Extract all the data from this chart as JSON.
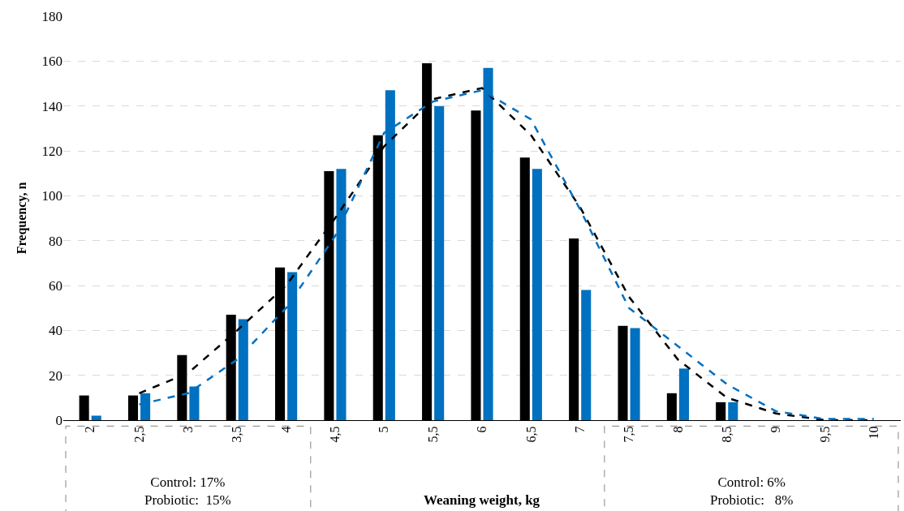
{
  "chart_data": {
    "type": "bar",
    "xlabel": "Weaning weight, kg",
    "ylabel": "Frequency, n",
    "categories": [
      "2",
      "2,5",
      "3",
      "3,5",
      "4",
      "4,5",
      "5",
      "5,5",
      "6",
      "6,5",
      "7",
      "7,5",
      "8",
      "8,5",
      "9",
      "9,5",
      "10"
    ],
    "series": [
      {
        "color": "#000000",
        "values": [
          11,
          11,
          29,
          47,
          68,
          111,
          127,
          159,
          138,
          117,
          81,
          42,
          12,
          8,
          null,
          null,
          null
        ]
      },
      {
        "color": "#0070c0",
        "values": [
          2,
          12,
          15,
          45,
          66,
          112,
          147,
          140,
          157,
          112,
          58,
          41,
          23,
          8,
          null,
          null,
          null
        ]
      },
      {
        "type": "line",
        "color": "#000000",
        "line_style": "dashed",
        "values": [
          null,
          12,
          21,
          40,
          60,
          90,
          122,
          143,
          148,
          127,
          95,
          55,
          27,
          10,
          3,
          0,
          0
        ]
      },
      {
        "type": "line",
        "color": "#0070c0",
        "line_style": "dashed",
        "values": [
          null,
          7,
          12,
          27,
          50,
          82,
          128,
          142,
          147,
          134,
          94,
          50,
          33,
          16,
          4,
          0.5,
          0.5
        ]
      }
    ],
    "ylim": [
      0,
      180
    ],
    "yticks": [
      0,
      20,
      40,
      60,
      80,
      100,
      120,
      140,
      160,
      180
    ],
    "grid": "y",
    "annotations": [
      "Control: 17%\nProbiotic:  15%",
      "Control: 6%\nProbiotic:   8%"
    ]
  }
}
